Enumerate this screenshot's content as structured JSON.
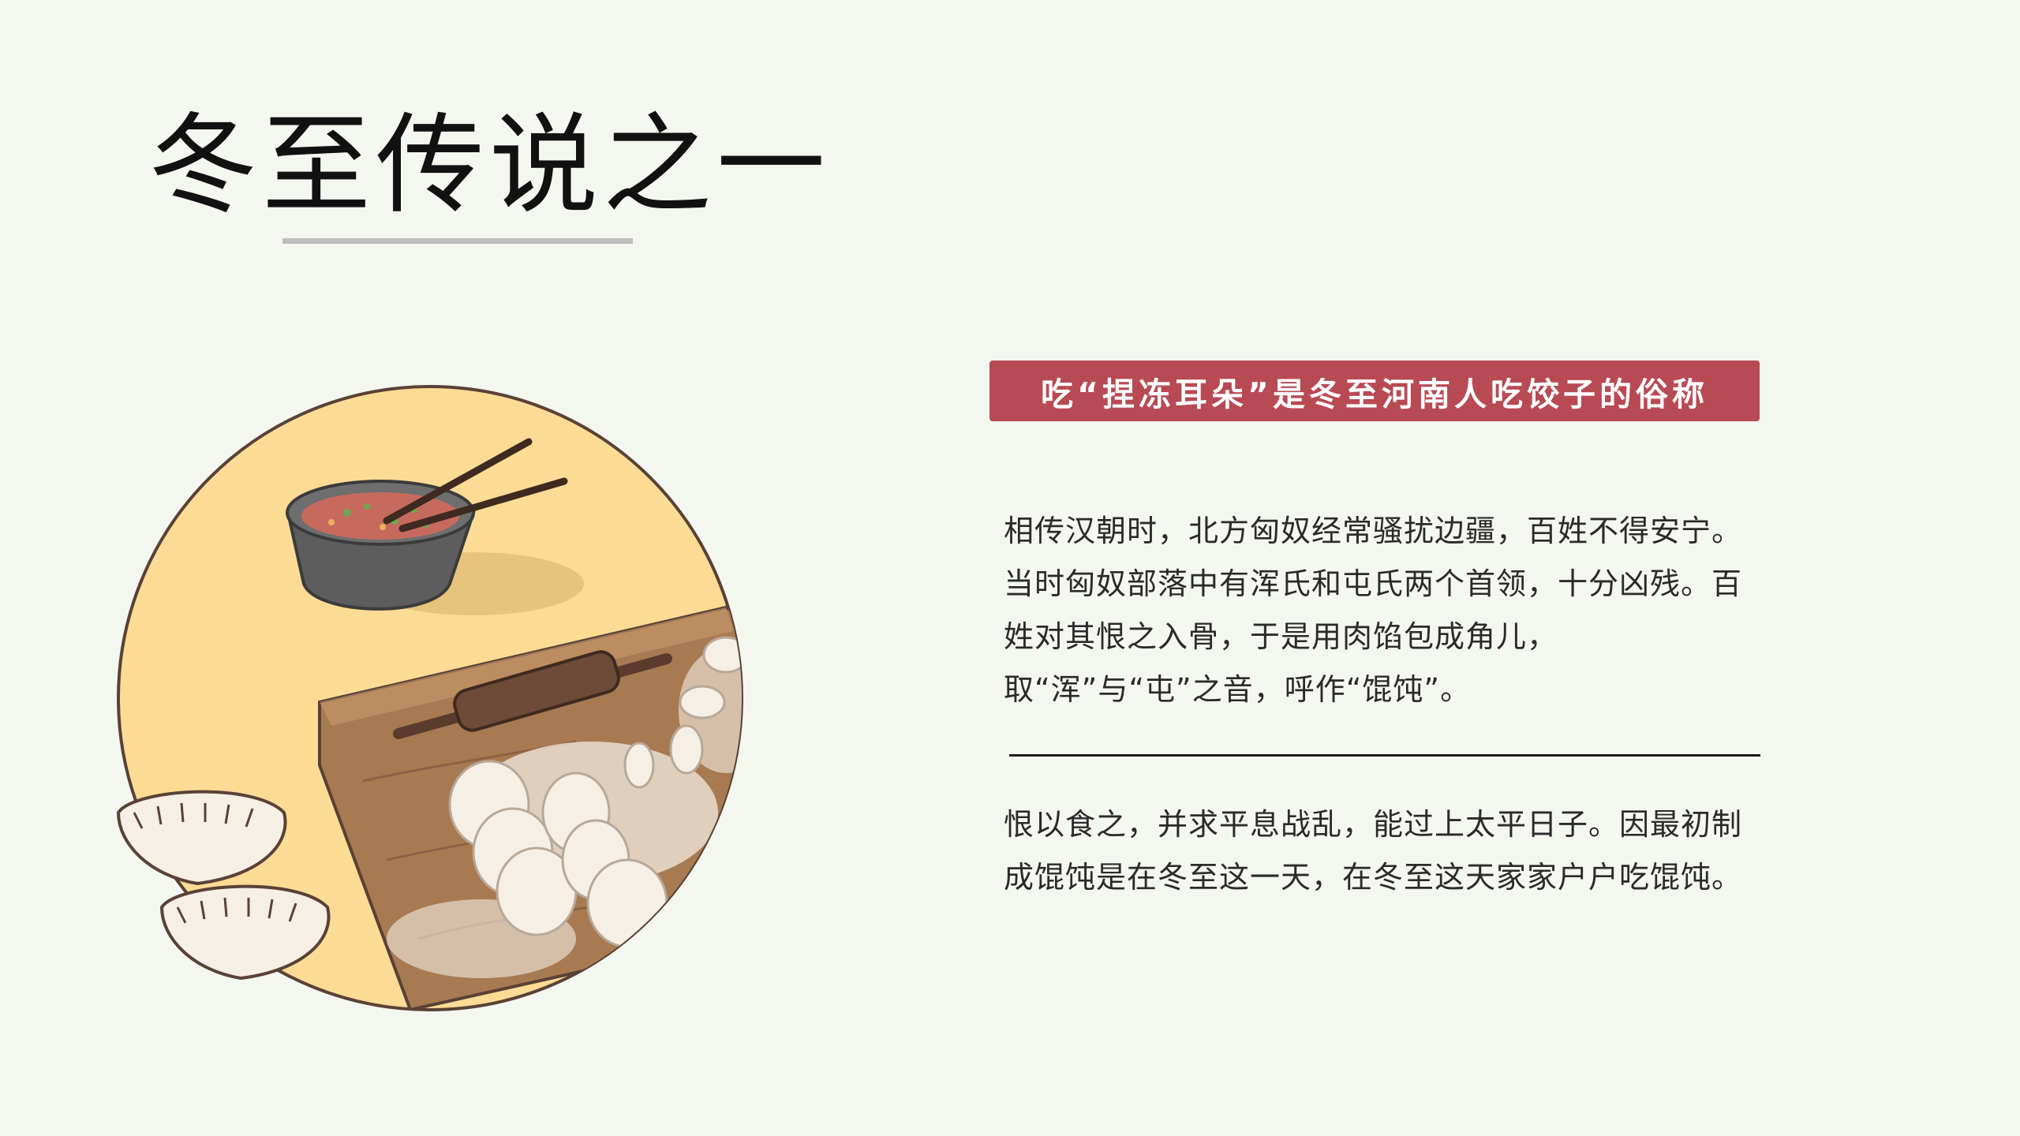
{
  "slide": {
    "title": "冬至传说之一",
    "badge_text": "吃“捏冻耳朵”是冬至河南人吃饺子的俗称",
    "paragraph_1": "相传汉朝时，北方匈奴经常骚扰边疆，百姓不得安宁。当时匈奴部落中有浑氏和屯氏两个首领，十分凶残。百姓对其恨之入骨，于是用肉馅包成角儿，取“浑”与“屯”之音，呼作“馄饨”。",
    "paragraph_2": "恨以食之，并求平息战乱，能过上太平日子。因最初制成馄饨是在冬至这一天，在冬至这天家家户户吃馄饨。"
  },
  "colors": {
    "background": "#f3f7f0",
    "badge": "#b84a54",
    "circle": "#fcdc95",
    "board": "#a87a52"
  }
}
